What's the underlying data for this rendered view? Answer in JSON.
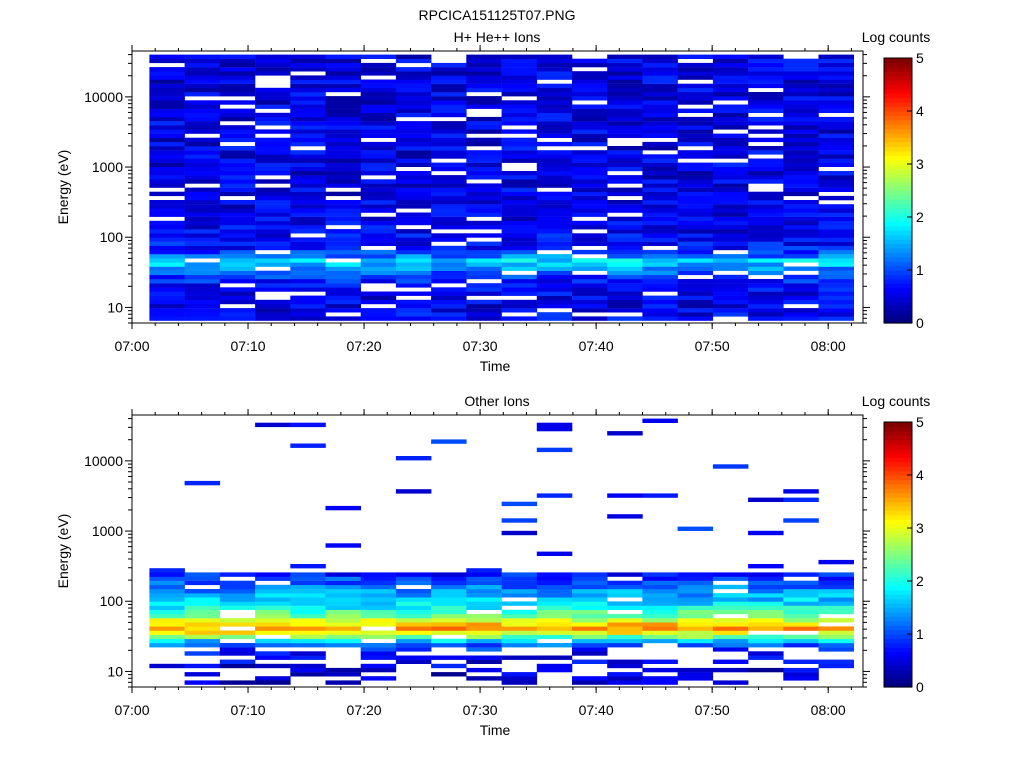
{
  "figure": {
    "title": "RPCICA151125T07.PNG"
  },
  "chart_data": [
    {
      "type": "heatmap",
      "title": "H+ He++ Ions",
      "xlabel": "Time",
      "ylabel": "Energy (eV)",
      "x_ticks": [
        "07:00",
        "07:10",
        "07:20",
        "07:30",
        "07:40",
        "07:50",
        "08:00"
      ],
      "y_ticks": [
        "10",
        "100",
        "1000",
        "10000"
      ],
      "y_scale": "log",
      "x_range": [
        "07:00",
        "08:03"
      ],
      "y_range": [
        6,
        45000
      ],
      "x_bins": [
        "07:01",
        "07:05",
        "07:08",
        "07:11",
        "07:14",
        "07:17",
        "07:20",
        "07:23",
        "07:27",
        "07:30",
        "07:33",
        "07:36",
        "07:40",
        "07:43",
        "07:46",
        "07:49",
        "07:52",
        "07:56",
        "07:59",
        "08:02"
      ],
      "colorbar": {
        "label": "Log counts",
        "range": [
          0,
          5
        ],
        "ticks": [
          "0",
          "1",
          "2",
          "3",
          "4",
          "5"
        ],
        "colormap": "jet"
      },
      "profile": {
        "description_energy_eV": [
          7,
          10,
          14,
          20,
          28,
          35,
          42,
          48,
          55,
          70,
          100,
          200,
          500,
          1000,
          3000,
          10000,
          40000
        ],
        "log_counts_mean": [
          0.6,
          0.5,
          0.55,
          0.6,
          0.9,
          1.3,
          1.6,
          1.7,
          1.1,
          0.7,
          0.6,
          0.5,
          0.5,
          0.5,
          0.5,
          0.5,
          0.5
        ]
      }
    },
    {
      "type": "heatmap",
      "title": "Other Ions",
      "xlabel": "Time",
      "ylabel": "Energy (eV)",
      "x_ticks": [
        "07:00",
        "07:10",
        "07:20",
        "07:30",
        "07:40",
        "07:50",
        "08:00"
      ],
      "y_ticks": [
        "10",
        "100",
        "1000",
        "10000"
      ],
      "y_scale": "log",
      "x_range": [
        "07:00",
        "08:03"
      ],
      "y_range": [
        6,
        45000
      ],
      "colorbar": {
        "label": "Log counts",
        "range": [
          0,
          5
        ],
        "ticks": [
          "0",
          "1",
          "2",
          "3",
          "4",
          "5"
        ],
        "colormap": "jet"
      },
      "profile": {
        "description_energy_eV": [
          7,
          10,
          18,
          25,
          30,
          35,
          40,
          48,
          58,
          80,
          120,
          180,
          250
        ],
        "log_counts_mean": [
          0.3,
          0.4,
          0.6,
          1.2,
          2.2,
          3.0,
          3.6,
          3.3,
          2.6,
          1.9,
          1.5,
          1.1,
          0.7
        ]
      }
    }
  ]
}
